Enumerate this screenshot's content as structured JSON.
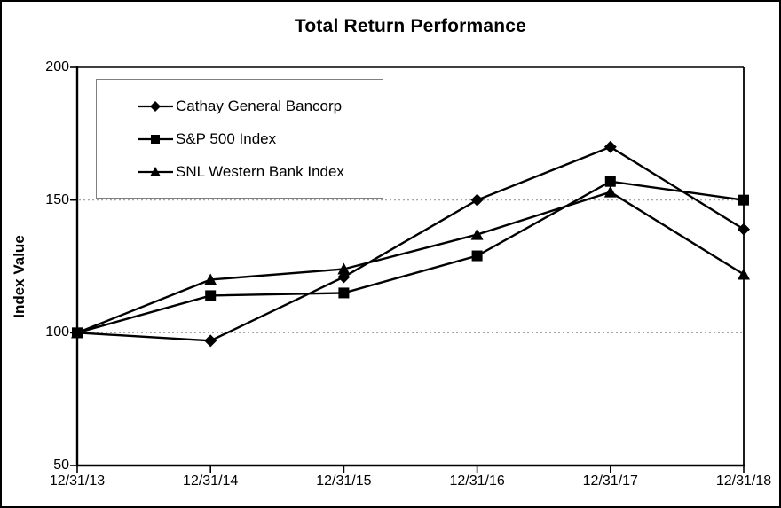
{
  "chart_data": {
    "type": "line",
    "title": "Total Return Performance",
    "xlabel": "",
    "ylabel": "Index Value",
    "categories": [
      "12/31/13",
      "12/31/14",
      "12/31/15",
      "12/31/16",
      "12/31/17",
      "12/31/18"
    ],
    "series": [
      {
        "name": "Cathay General Bancorp",
        "marker": "diamond",
        "values": [
          100,
          97,
          121,
          150,
          170,
          139
        ]
      },
      {
        "name": "S&P 500 Index",
        "marker": "square",
        "values": [
          100,
          114,
          115,
          129,
          157,
          150
        ]
      },
      {
        "name": "SNL Western Bank Index",
        "marker": "triangle",
        "values": [
          100,
          120,
          124,
          137,
          153,
          122
        ]
      }
    ],
    "ylim": [
      50,
      200
    ],
    "yticks": [
      200,
      150,
      100,
      50
    ],
    "gridlines": [
      150,
      100
    ],
    "grid": "horizontal dotted gridlines at 100 and 150",
    "legend_position": "top-left inside plot area",
    "line_color": "#000000",
    "grid_color": "#999999",
    "background_color": "#ffffff"
  }
}
